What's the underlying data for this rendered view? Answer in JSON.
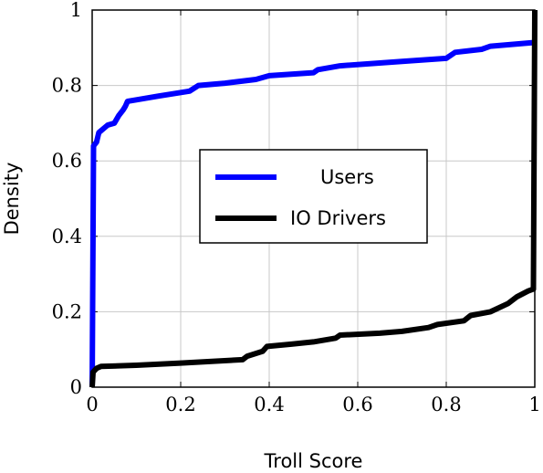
{
  "chart_data": {
    "type": "line",
    "xlabel": "Troll Score",
    "ylabel": "Density",
    "xlim": [
      0,
      1
    ],
    "ylim": [
      0,
      1
    ],
    "x_ticks": [
      "0",
      "0.2",
      "0.4",
      "0.6",
      "0.8",
      "1"
    ],
    "y_ticks": [
      "0",
      "0.2",
      "0.4",
      "0.6",
      "0.8",
      "1"
    ],
    "grid": true,
    "legend_position": "center-right",
    "series": [
      {
        "name": "Users",
        "color": "#0000ff",
        "points": [
          [
            0,
            0
          ],
          [
            0.003,
            0.64
          ],
          [
            0.01,
            0.65
          ],
          [
            0.015,
            0.675
          ],
          [
            0.025,
            0.685
          ],
          [
            0.035,
            0.695
          ],
          [
            0.05,
            0.7
          ],
          [
            0.06,
            0.72
          ],
          [
            0.07,
            0.735
          ],
          [
            0.075,
            0.745
          ],
          [
            0.08,
            0.758
          ],
          [
            0.1,
            0.762
          ],
          [
            0.15,
            0.772
          ],
          [
            0.22,
            0.785
          ],
          [
            0.24,
            0.8
          ],
          [
            0.3,
            0.806
          ],
          [
            0.37,
            0.816
          ],
          [
            0.4,
            0.826
          ],
          [
            0.5,
            0.834
          ],
          [
            0.51,
            0.842
          ],
          [
            0.56,
            0.852
          ],
          [
            0.7,
            0.864
          ],
          [
            0.8,
            0.872
          ],
          [
            0.82,
            0.888
          ],
          [
            0.88,
            0.896
          ],
          [
            0.9,
            0.904
          ],
          [
            1.0,
            0.914
          ]
        ]
      },
      {
        "name": "IO Drivers",
        "color": "#000000",
        "points": [
          [
            0,
            0
          ],
          [
            0.002,
            0.04
          ],
          [
            0.01,
            0.05
          ],
          [
            0.02,
            0.055
          ],
          [
            0.1,
            0.058
          ],
          [
            0.2,
            0.064
          ],
          [
            0.34,
            0.073
          ],
          [
            0.35,
            0.082
          ],
          [
            0.385,
            0.095
          ],
          [
            0.395,
            0.108
          ],
          [
            0.45,
            0.114
          ],
          [
            0.5,
            0.12
          ],
          [
            0.55,
            0.13
          ],
          [
            0.56,
            0.138
          ],
          [
            0.65,
            0.143
          ],
          [
            0.7,
            0.148
          ],
          [
            0.76,
            0.158
          ],
          [
            0.78,
            0.166
          ],
          [
            0.84,
            0.176
          ],
          [
            0.855,
            0.19
          ],
          [
            0.9,
            0.2
          ],
          [
            0.94,
            0.222
          ],
          [
            0.96,
            0.24
          ],
          [
            0.985,
            0.255
          ],
          [
            0.997,
            0.26
          ],
          [
            1.0,
            1.0
          ]
        ]
      }
    ]
  }
}
